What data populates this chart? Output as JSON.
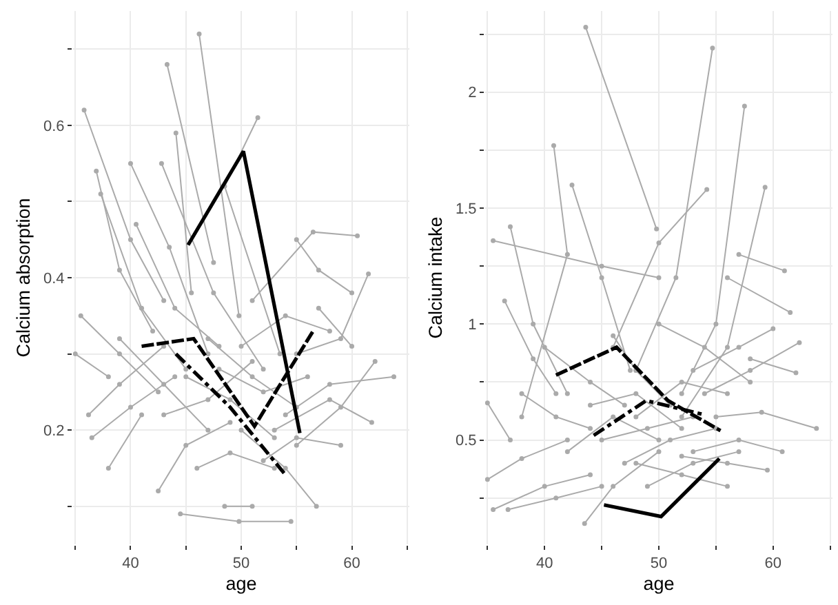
{
  "chart_data": [
    {
      "type": "line",
      "xlabel": "age",
      "ylabel": "Calcium absorption",
      "grid": true,
      "xlim": [
        34.8,
        65.2
      ],
      "xticks": [
        {
          "value": 35,
          "label": null
        },
        40,
        {
          "value": 45,
          "label": null
        },
        50,
        {
          "value": 55,
          "label": null
        },
        60,
        {
          "value": 65,
          "label": null
        }
      ],
      "ylim": [
        0.05,
        0.75
      ],
      "yticks": [
        {
          "value": 0.1,
          "label": null
        },
        0.2,
        {
          "value": 0.3,
          "label": null
        },
        0.4,
        {
          "value": 0.5,
          "label": null
        },
        0.6,
        {
          "value": 0.7,
          "label": null
        }
      ],
      "series": [
        {
          "color": "#aaaaaa",
          "marker": "circle",
          "line_style": "solid",
          "x": [
            46.2,
            49.8,
            null,
            43.3,
            47.5,
            null,
            35.8,
            40,
            43,
            null,
            51.5,
            48.5,
            53.5,
            null,
            44.1,
            45.5,
            null,
            40,
            43.5,
            47,
            null,
            42.8,
            47.5,
            52,
            null,
            36.9,
            39,
            42,
            null,
            37.3,
            41,
            45,
            null,
            60.5,
            56.5,
            51,
            null,
            61.5,
            59,
            55,
            null,
            35.5,
            39,
            42.5,
            null,
            35,
            38,
            null,
            38,
            41,
            null,
            44.5,
            49.8,
            54.5,
            null,
            48.5,
            51,
            null,
            62.1,
            59,
            55,
            null,
            63.8,
            58,
            54,
            null,
            61.8,
            58,
            53,
            null,
            42.5,
            45,
            49,
            null,
            56.8,
            54,
            50,
            null,
            36.5,
            40,
            44,
            null,
            36.2,
            39,
            43,
            null,
            40.5,
            44,
            48,
            null,
            47,
            51,
            55,
            null,
            45,
            49,
            53,
            null,
            48,
            52,
            56,
            null,
            43,
            47,
            51,
            null,
            50,
            54,
            58,
            null,
            52,
            55,
            59,
            null,
            46,
            49,
            53,
            null,
            57,
            60,
            null,
            39,
            43,
            47,
            null,
            55,
            57,
            60
          ],
          "values": [
            0.72,
            0.35,
            null,
            0.68,
            0.42,
            null,
            0.62,
            0.45,
            0.37,
            null,
            0.61,
            0.52,
            0.3,
            null,
            0.59,
            0.38,
            null,
            0.55,
            0.44,
            0.3,
            null,
            0.55,
            0.38,
            0.28,
            null,
            0.54,
            0.41,
            0.33,
            null,
            0.51,
            0.36,
            0.28,
            null,
            0.455,
            0.46,
            0.37,
            null,
            0.405,
            0.32,
            0.3,
            null,
            0.35,
            0.3,
            0.25,
            null,
            0.3,
            0.27,
            null,
            0.15,
            0.22,
            null,
            0.09,
            0.08,
            0.08,
            null,
            0.1,
            0.1,
            null,
            0.29,
            0.23,
            0.18,
            null,
            0.27,
            0.26,
            0.22,
            null,
            0.21,
            0.24,
            0.2,
            null,
            0.12,
            0.18,
            0.21,
            null,
            0.1,
            0.15,
            0.2,
            null,
            0.19,
            0.23,
            0.27,
            null,
            0.22,
            0.26,
            0.31,
            null,
            0.47,
            0.36,
            0.31,
            null,
            0.32,
            0.27,
            0.23,
            null,
            0.27,
            0.24,
            0.19,
            null,
            0.28,
            0.25,
            0.27,
            null,
            0.22,
            0.24,
            0.29,
            null,
            0.31,
            0.35,
            0.33,
            null,
            0.16,
            0.19,
            0.18,
            null,
            0.15,
            0.17,
            0.15,
            null,
            0.36,
            0.31,
            null,
            0.32,
            0.26,
            0.2,
            null,
            0.45,
            0.41,
            0.38
          ]
        },
        {
          "color": "#000000",
          "marker": "none",
          "line_style": "solid",
          "x": [
            45.2,
            50.2,
            55.3
          ],
          "values": [
            0.443,
            0.566,
            0.196
          ]
        },
        {
          "color": "#000000",
          "marker": "none",
          "line_style": "dashed",
          "x": [
            41,
            45.7,
            51.2,
            56.5
          ],
          "values": [
            0.31,
            0.32,
            0.205,
            0.33
          ]
        },
        {
          "color": "#000000",
          "marker": "none",
          "line_style": "dotted",
          "x": [
            44.1,
            49,
            53.9
          ],
          "values": [
            0.3,
            0.23,
            0.143
          ]
        }
      ]
    },
    {
      "type": "line",
      "xlabel": "age",
      "ylabel": "Calcium intake",
      "grid": true,
      "xlim": [
        34.8,
        65.2
      ],
      "xticks": [
        {
          "value": 35,
          "label": null
        },
        40,
        {
          "value": 45,
          "label": null
        },
        50,
        {
          "value": 55,
          "label": null
        },
        60,
        {
          "value": 65,
          "label": null
        }
      ],
      "ylim": [
        0.05,
        2.35
      ],
      "yticks": [
        {
          "value": 0.25,
          "label": null
        },
        0.5,
        {
          "value": 0.75,
          "label": null
        },
        1.0,
        {
          "value": 1.25,
          "label": null
        },
        1.5,
        {
          "value": 1.75,
          "label": null
        },
        2.0,
        {
          "value": 2.25,
          "label": null
        }
      ],
      "series": [
        {
          "color": "#aaaaaa",
          "marker": "circle",
          "line_style": "solid",
          "x": [
            43.6,
            49.8,
            null,
            54.7,
            51.5,
            48,
            null,
            57.5,
            55,
            52,
            null,
            40.8,
            42,
            38,
            null,
            42.4,
            45,
            47.5,
            null,
            54.2,
            50,
            46,
            null,
            59.3,
            56,
            52,
            null,
            35.5,
            45,
            50,
            null,
            57,
            61,
            null,
            56,
            61.5,
            null,
            37,
            39,
            42,
            null,
            35,
            37,
            null,
            35,
            38,
            42,
            null,
            35.5,
            40,
            44,
            null,
            36.8,
            41,
            45,
            null,
            43.5,
            46,
            50,
            null,
            63.8,
            59,
            55,
            null,
            62.3,
            58,
            54,
            null,
            62,
            58,
            null,
            60.8,
            57,
            53,
            null,
            59.5,
            56,
            52,
            null,
            56,
            52,
            48,
            null,
            38,
            41,
            44,
            null,
            40,
            44,
            47,
            null,
            45,
            49,
            53,
            null,
            46,
            48,
            51,
            null,
            47,
            51,
            55,
            null,
            49,
            53,
            57,
            null,
            42,
            46,
            50,
            null,
            48,
            52,
            56,
            null,
            44,
            48,
            52,
            null,
            60,
            57,
            53,
            null,
            36.5,
            39,
            41,
            null,
            50,
            54,
            58
          ],
          "values": [
            2.28,
            1.41,
            null,
            2.19,
            1.2,
            0.8,
            null,
            1.94,
            1.0,
            0.7,
            null,
            1.77,
            1.3,
            0.6,
            null,
            1.6,
            1.2,
            0.8,
            null,
            1.58,
            1.35,
            0.9,
            null,
            1.59,
            0.9,
            0.6,
            null,
            1.36,
            1.25,
            1.2,
            null,
            1.3,
            1.23,
            null,
            1.2,
            1.05,
            null,
            1.42,
            1.0,
            0.7,
            null,
            0.66,
            0.5,
            null,
            0.33,
            0.42,
            0.5,
            null,
            0.2,
            0.3,
            0.35,
            null,
            0.2,
            0.25,
            0.3,
            null,
            0.14,
            0.3,
            0.45,
            null,
            0.55,
            0.62,
            0.6,
            null,
            0.92,
            0.8,
            0.7,
            null,
            0.79,
            0.85,
            null,
            0.45,
            0.5,
            0.45,
            null,
            0.37,
            0.4,
            0.43,
            null,
            0.3,
            0.35,
            0.4,
            null,
            0.7,
            0.6,
            0.55,
            null,
            0.9,
            0.75,
            0.65,
            null,
            0.5,
            0.55,
            0.6,
            null,
            0.95,
            0.8,
            0.65,
            null,
            0.4,
            0.5,
            0.55,
            null,
            0.3,
            0.4,
            0.45,
            null,
            0.45,
            0.6,
            0.5,
            null,
            0.6,
            0.75,
            0.7,
            null,
            0.65,
            0.7,
            0.55,
            null,
            0.98,
            0.9,
            0.8,
            null,
            1.1,
            0.85,
            0.7,
            null,
            1.0,
            0.9,
            0.75
          ]
        },
        {
          "color": "#000000",
          "marker": "none",
          "line_style": "solid",
          "x": [
            45.2,
            50.2,
            55.3
          ],
          "values": [
            0.22,
            0.17,
            0.42
          ]
        },
        {
          "color": "#000000",
          "marker": "none",
          "line_style": "dashed",
          "x": [
            41,
            46.3,
            50.8,
            55.4
          ],
          "values": [
            0.78,
            0.9,
            0.67,
            0.54
          ]
        },
        {
          "color": "#000000",
          "marker": "none",
          "line_style": "dotted",
          "x": [
            44.3,
            48.9,
            53.9
          ],
          "values": [
            0.52,
            0.67,
            0.61
          ]
        }
      ]
    }
  ]
}
